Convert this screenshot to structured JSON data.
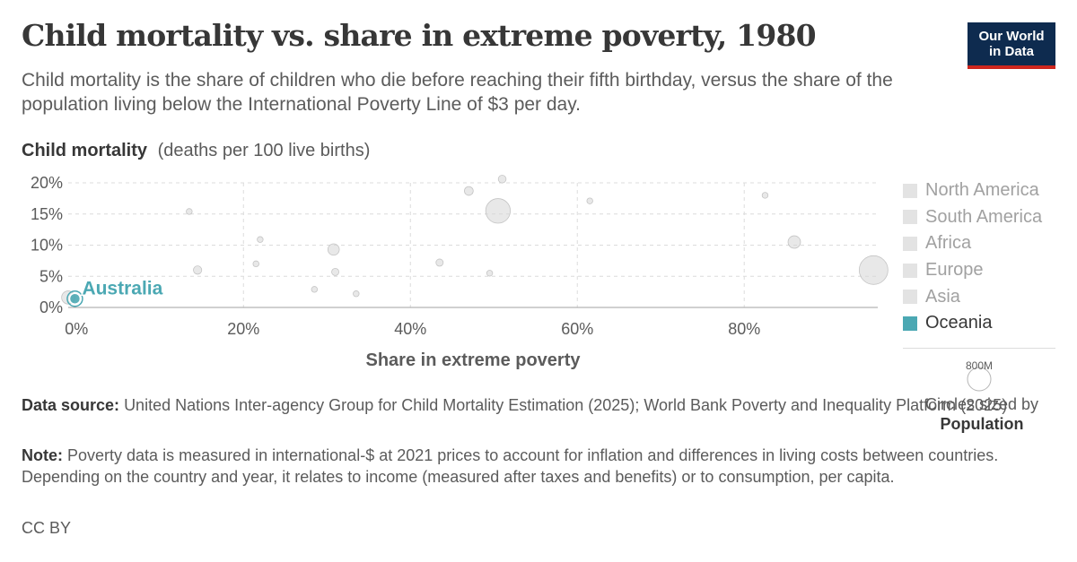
{
  "header": {
    "title": "Child mortality vs. share in extreme poverty, 1980",
    "subtitle": "Child mortality is the share of children who die before reaching their fifth birthday, versus the share of the population living below the International Poverty Line of $3 per day.",
    "logo_line1": "Our World",
    "logo_line2": "in Data"
  },
  "colors": {
    "oceania": "#4ba8b3",
    "faded_point": "#d6d6d6",
    "grid": "#dcdcdc",
    "logo_bg": "#0e2b4f",
    "logo_bar": "#ce261e"
  },
  "chart_data": {
    "type": "scatter",
    "title": "Child mortality vs. share in extreme poverty, 1980",
    "ylabel_bold": "Child mortality",
    "ylabel_rest": "(deaths per 100 live births)",
    "xlabel": "Share in extreme poverty",
    "xlim": [
      -1,
      96
    ],
    "ylim": [
      0,
      20
    ],
    "xticks": [
      0,
      20,
      40,
      60,
      80
    ],
    "xtick_labels": [
      "0%",
      "20%",
      "40%",
      "60%",
      "80%"
    ],
    "yticks": [
      0,
      5,
      10,
      15,
      20
    ],
    "ytick_labels": [
      "0%",
      "5%",
      "10%",
      "15%",
      "20%"
    ],
    "grid": true,
    "legend_position": "right",
    "legend": [
      "North America",
      "South America",
      "Africa",
      "Europe",
      "Asia",
      "Oceania"
    ],
    "highlighted_region": "Oceania",
    "size_legend": {
      "value_label": "800M",
      "caption": "Circles sized by",
      "variable": "Population"
    },
    "points": [
      {
        "x": -0.2,
        "y": 1.4,
        "region": "Oceania",
        "label": "Australia",
        "pop": 15
      },
      {
        "x": -1.0,
        "y": 1.6,
        "region": "Other",
        "pop": 20
      },
      {
        "x": 13.5,
        "y": 15.4,
        "region": "Other",
        "pop": 4
      },
      {
        "x": 14.5,
        "y": 6.0,
        "region": "Other",
        "pop": 8
      },
      {
        "x": 22.0,
        "y": 10.9,
        "region": "Other",
        "pop": 4
      },
      {
        "x": 21.5,
        "y": 7.0,
        "region": "Other",
        "pop": 4
      },
      {
        "x": 28.5,
        "y": 2.9,
        "region": "Other",
        "pop": 4
      },
      {
        "x": 30.8,
        "y": 9.3,
        "region": "Other",
        "pop": 15
      },
      {
        "x": 31.0,
        "y": 5.7,
        "region": "Other",
        "pop": 6
      },
      {
        "x": 33.5,
        "y": 2.2,
        "region": "Other",
        "pop": 4
      },
      {
        "x": 43.5,
        "y": 7.2,
        "region": "Other",
        "pop": 6
      },
      {
        "x": 47.0,
        "y": 18.7,
        "region": "Other",
        "pop": 9
      },
      {
        "x": 49.5,
        "y": 5.5,
        "region": "Other",
        "pop": 4
      },
      {
        "x": 50.5,
        "y": 15.5,
        "region": "Other",
        "pop": 70
      },
      {
        "x": 51.0,
        "y": 20.6,
        "region": "Other",
        "pop": 7
      },
      {
        "x": 61.5,
        "y": 17.1,
        "region": "Other",
        "pop": 4
      },
      {
        "x": 82.5,
        "y": 18.0,
        "region": "Other",
        "pop": 4
      },
      {
        "x": 86.0,
        "y": 10.5,
        "region": "Other",
        "pop": 18
      },
      {
        "x": 95.5,
        "y": 6.0,
        "region": "Other",
        "pop": 95
      }
    ]
  },
  "footer": {
    "source_label": "Data source:",
    "source_text": "United Nations Inter-agency Group for Child Mortality Estimation (2025); World Bank Poverty and Inequality Platform (2025)",
    "note_label": "Note:",
    "note_text": "Poverty data is measured in international-$ at 2021 prices to account for inflation and differences in living costs between countries. Depending on the country and year, it relates to income (measured after taxes and benefits) or to consumption, per capita.",
    "license": "CC BY"
  }
}
